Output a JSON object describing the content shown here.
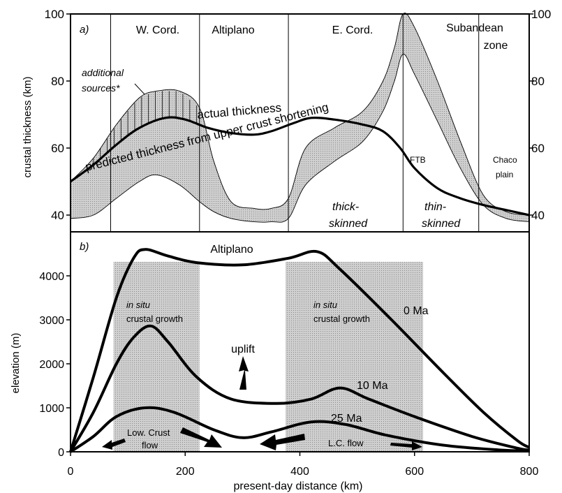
{
  "chart_data": [
    {
      "type": "line",
      "panel_label": "a)",
      "ylabel": "crustal thickness (km)",
      "ylim": [
        35,
        100
      ],
      "xlim": [
        0,
        800
      ],
      "y_ticks": [
        40,
        60,
        80,
        100
      ],
      "y_tick_labels": [
        "40",
        "60",
        "80",
        "100"
      ],
      "y_tick_labels_right": [
        "40",
        "60",
        "80",
        "100"
      ],
      "zone_boundaries": [
        70,
        225,
        380,
        580,
        712
      ],
      "zones": [
        "W. Cord.",
        "Altiplano",
        "E. Cord.",
        "Subandean",
        "zone"
      ],
      "series": [
        {
          "name": "actual thickness",
          "x": [
            0,
            40,
            80,
            120,
            165,
            200,
            240,
            280,
            320,
            350,
            390,
            420,
            460,
            510,
            545,
            575,
            600,
            640,
            680,
            720,
            760,
            800
          ],
          "values": [
            50,
            55,
            61,
            66,
            69,
            68.5,
            66,
            64.5,
            64,
            65,
            67.5,
            69,
            68.5,
            67,
            65,
            60,
            54,
            48,
            45,
            43,
            41.5,
            40
          ]
        }
      ],
      "band": {
        "name": "predicted thickness from upper crust shortening",
        "x": [
          0,
          40,
          80,
          120,
          150,
          190,
          225,
          250,
          280,
          320,
          350,
          380,
          410,
          460,
          510,
          545,
          565,
          580,
          600,
          640,
          680,
          720,
          760,
          800
        ],
        "upper": [
          50,
          57,
          67,
          75,
          77,
          77,
          72,
          56,
          44,
          42,
          42,
          45,
          60,
          66,
          71,
          80,
          90,
          100,
          96,
          80,
          62,
          46,
          41,
          40
        ],
        "lower": [
          39,
          40,
          45,
          50,
          52,
          49,
          44,
          41,
          39,
          38,
          38,
          39,
          49,
          56,
          62,
          71,
          80,
          88,
          82,
          68,
          54,
          43,
          39,
          38
        ]
      },
      "annotations": [
        "additional",
        "sources*",
        "actual thickness",
        "predicted thickness from upper crust shortening",
        "FTB",
        "Chaco",
        "plain",
        "thick-",
        "skinned",
        "thin-",
        "skinned"
      ]
    },
    {
      "type": "line",
      "panel_label": "b)",
      "title": "Altiplano",
      "xlabel": "present-day distance (km)",
      "ylabel": "elevation (m)",
      "xlim": [
        0,
        800
      ],
      "ylim": [
        0,
        5000
      ],
      "x_ticks": [
        0,
        200,
        400,
        600,
        800
      ],
      "x_tick_labels": [
        "0",
        "200",
        "400",
        "600",
        "800"
      ],
      "y_ticks": [
        0,
        1000,
        2000,
        3000,
        4000
      ],
      "y_tick_labels": [
        "0",
        "1000",
        "2000",
        "3000",
        "4000"
      ],
      "shaded_regions": [
        {
          "x": [
            75,
            225
          ],
          "label_1": "in situ",
          "label_2": "crustal growth"
        },
        {
          "x": [
            375,
            615
          ],
          "label_1": "in situ",
          "label_2": "crustal growth"
        }
      ],
      "series": [
        {
          "name": "0 Ma",
          "x": [
            0,
            40,
            80,
            110,
            130,
            170,
            220,
            300,
            380,
            430,
            470,
            560,
            650,
            720,
            780,
            800
          ],
          "values": [
            0,
            1700,
            3500,
            4400,
            4600,
            4450,
            4300,
            4250,
            4400,
            4550,
            4150,
            3000,
            1800,
            900,
            250,
            100
          ]
        },
        {
          "name": "10 Ma",
          "x": [
            0,
            40,
            80,
            110,
            140,
            170,
            220,
            280,
            360,
            420,
            470,
            520,
            600,
            700,
            780,
            800
          ],
          "values": [
            0,
            900,
            2000,
            2600,
            2860,
            2500,
            1700,
            1200,
            1100,
            1200,
            1450,
            1200,
            800,
            350,
            80,
            40
          ]
        },
        {
          "name": "25 Ma",
          "x": [
            0,
            40,
            80,
            130,
            180,
            250,
            300,
            350,
            420,
            480,
            550,
            650,
            750,
            800
          ],
          "values": [
            0,
            350,
            800,
            1000,
            900,
            500,
            320,
            450,
            680,
            620,
            380,
            150,
            40,
            20
          ]
        }
      ],
      "annotations": [
        "uplift",
        "Low. Crust",
        "flow",
        "L.C. flow"
      ]
    }
  ]
}
